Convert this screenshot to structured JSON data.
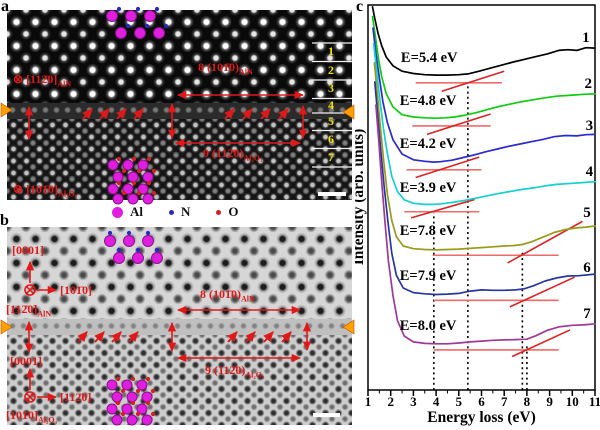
{
  "figure": {
    "panel_a": {
      "letter": "a",
      "zone_top": {
        "symbol": "⊗",
        "text": "[112̄0]",
        "sub": "AlN"
      },
      "zone_bottom": {
        "symbol": "⊗",
        "text": "[101̄0]",
        "sub": "Al₂O₃"
      },
      "span_top": {
        "text": "8 (101̄0)",
        "sub": "AlN"
      },
      "span_bottom": {
        "text": "9 (112̄0)",
        "sub": "Al₂O₃"
      },
      "layer_numbers": [
        "1",
        "2",
        "3",
        "4",
        "5",
        "6",
        "7"
      ]
    },
    "legend": {
      "items": [
        {
          "label": "Al",
          "color": "#e01ee0",
          "radius": 5.5
        },
        {
          "label": "N",
          "color": "#2828c8",
          "radius": 2.5
        },
        {
          "label": "O",
          "color": "#d42020",
          "radius": 2.5
        }
      ]
    },
    "panel_b": {
      "letter": "b",
      "axis_top": {
        "up": "[0001]",
        "right": "[101̄0]",
        "zone": "[112̄0]",
        "zone_sub": "AlN"
      },
      "axis_bottom": {
        "up": "[0001]",
        "right": "[112̄0]",
        "zone": "[101̄0]",
        "zone_sub": "Al₂O₃"
      },
      "span_top": {
        "text": "8 (101̄0)",
        "sub": "AlN"
      },
      "span_bottom": {
        "text": "9 (112̄0)",
        "sub": "Al₂O₃"
      }
    },
    "panel_c": {
      "letter": "c"
    }
  },
  "chart_data": {
    "type": "line",
    "title": "",
    "xlabel": "Energy loss (eV)",
    "ylabel": "Intensity (arb. units)",
    "xlim": [
      1,
      11
    ],
    "ylim": [
      0,
      100
    ],
    "x_major_ticks": [
      1,
      2,
      3,
      4,
      5,
      6,
      7,
      8,
      9,
      10,
      11
    ],
    "x_minor_step": 0.5,
    "grid": false,
    "legend_position": "none",
    "slant_color": "#dd2222",
    "baseline_color": "#f26a6a",
    "dotted_guides": [
      {
        "x": 3.9,
        "y_top": 46
      },
      {
        "x": 5.4,
        "y_top": 80
      },
      {
        "x": 7.8,
        "y_top": 36.5
      },
      {
        "x": 8.0,
        "y_top": 12
      }
    ],
    "series": [
      {
        "name": "1",
        "color": "#000000",
        "onset_eV": 5.4,
        "onset_label": "E=5.4 eV",
        "label_pos": [
          2.45,
          85.2
        ],
        "num_pos": [
          10.6,
          90.4
        ],
        "red_baseline": {
          "y": 79.8,
          "x1": 3.1,
          "x2": 6.9
        },
        "red_slant": [
          [
            4.25,
            77.6
          ],
          [
            7.0,
            82.8
          ]
        ],
        "points": [
          [
            1.2,
            99.5
          ],
          [
            1.3,
            96.5
          ],
          [
            1.45,
            92.5
          ],
          [
            1.6,
            89.5
          ],
          [
            1.8,
            86.5
          ],
          [
            2.1,
            84.2
          ],
          [
            2.5,
            82.8
          ],
          [
            3,
            82.2
          ],
          [
            3.5,
            81.9
          ],
          [
            4,
            81.8
          ],
          [
            4.5,
            81.8
          ],
          [
            5,
            81.9
          ],
          [
            5.4,
            82.1
          ],
          [
            5.9,
            82.8
          ],
          [
            6.4,
            83.6
          ],
          [
            6.9,
            84.4
          ],
          [
            7.4,
            85.2
          ],
          [
            7.9,
            85.9
          ],
          [
            8.4,
            86.6
          ],
          [
            8.9,
            87.3
          ],
          [
            9.4,
            88.2
          ],
          [
            9.8,
            88.4
          ],
          [
            10.2,
            88.2
          ],
          [
            10.6,
            88.9
          ],
          [
            11,
            88.8
          ]
        ]
      },
      {
        "name": "2",
        "color": "#10cc10",
        "onset_eV": 4.8,
        "onset_label": "E=4.8 eV",
        "label_pos": [
          2.4,
          74.0
        ],
        "num_pos": [
          10.7,
          78.4
        ],
        "red_baseline": {
          "y": 68.6,
          "x1": 2.95,
          "x2": 6.4
        },
        "red_slant": [
          [
            3.6,
            66.4
          ],
          [
            6.4,
            71.7
          ]
        ],
        "points": [
          [
            1.2,
            97
          ],
          [
            1.32,
            92
          ],
          [
            1.45,
            86.5
          ],
          [
            1.6,
            81.5
          ],
          [
            1.8,
            77
          ],
          [
            2.1,
            73.5
          ],
          [
            2.5,
            71.5
          ],
          [
            3,
            70.9
          ],
          [
            3.5,
            70.7
          ],
          [
            4,
            70.6
          ],
          [
            4.4,
            70.7
          ],
          [
            4.8,
            70.9
          ],
          [
            5.3,
            71.4
          ],
          [
            5.8,
            72.1
          ],
          [
            6.3,
            72.9
          ],
          [
            6.8,
            73.7
          ],
          [
            7.3,
            74.3
          ],
          [
            7.8,
            74.9
          ],
          [
            8.3,
            75.4
          ],
          [
            8.8,
            75.9
          ],
          [
            9.3,
            76.3
          ],
          [
            10,
            76.6
          ],
          [
            10.5,
            76.8
          ],
          [
            11,
            76.9
          ]
        ]
      },
      {
        "name": "3",
        "color": "#2a2ad0",
        "onset_eV": 4.2,
        "onset_label": "E=4.2 eV",
        "label_pos": [
          2.4,
          62.9
        ],
        "num_pos": [
          10.75,
          67.5
        ],
        "red_baseline": {
          "y": 57.2,
          "x1": 2.7,
          "x2": 6.0
        },
        "red_slant": [
          [
            3.1,
            55.2
          ],
          [
            5.9,
            60.5
          ]
        ],
        "points": [
          [
            1.22,
            94
          ],
          [
            1.35,
            87.5
          ],
          [
            1.5,
            81
          ],
          [
            1.65,
            75
          ],
          [
            1.85,
            69.5
          ],
          [
            2.1,
            65
          ],
          [
            2.5,
            61.3
          ],
          [
            3,
            59.8
          ],
          [
            3.5,
            59.4
          ],
          [
            3.9,
            59.2
          ],
          [
            4.2,
            59.3
          ],
          [
            4.7,
            59.7
          ],
          [
            5.2,
            60.4
          ],
          [
            5.7,
            61.1
          ],
          [
            6.2,
            61.9
          ],
          [
            6.7,
            62.6
          ],
          [
            7.2,
            63.3
          ],
          [
            7.7,
            63.9
          ],
          [
            8.2,
            64.5
          ],
          [
            8.7,
            65.1
          ],
          [
            9.2,
            65.8
          ],
          [
            9.7,
            66.1
          ],
          [
            10.2,
            66
          ],
          [
            10.6,
            66.3
          ],
          [
            11,
            66.4
          ]
        ]
      },
      {
        "name": "4",
        "color": "#16d0d0",
        "onset_eV": 3.9,
        "onset_label": "E=3.9 eV",
        "label_pos": [
          2.4,
          51.4
        ],
        "num_pos": [
          10.75,
          55.6
        ],
        "red_baseline": {
          "y": 46.3,
          "x1": 2.6,
          "x2": 5.9
        },
        "red_slant": [
          [
            2.9,
            44.7
          ],
          [
            5.7,
            49.5
          ]
        ],
        "points": [
          [
            1.25,
            90
          ],
          [
            1.38,
            83
          ],
          [
            1.52,
            75.5
          ],
          [
            1.68,
            68
          ],
          [
            1.85,
            61.5
          ],
          [
            2.05,
            55.5
          ],
          [
            2.3,
            51.5
          ],
          [
            2.6,
            49.4
          ],
          [
            3,
            48.5
          ],
          [
            3.5,
            48.2
          ],
          [
            3.9,
            48.2
          ],
          [
            4.3,
            48.4
          ],
          [
            4.8,
            48.8
          ],
          [
            5.3,
            49.3
          ],
          [
            5.8,
            49.9
          ],
          [
            6.3,
            50.5
          ],
          [
            6.8,
            51.1
          ],
          [
            7.3,
            51.6
          ],
          [
            7.8,
            52.1
          ],
          [
            8.3,
            52.5
          ],
          [
            8.8,
            53
          ],
          [
            9.3,
            53.4
          ],
          [
            10,
            53.7
          ],
          [
            10.5,
            53.9
          ],
          [
            11,
            54.1
          ]
        ]
      },
      {
        "name": "5",
        "color": "#9a9a1a",
        "onset_eV": 7.8,
        "onset_label": "E=7.8 eV",
        "label_pos": [
          2.4,
          40.3
        ],
        "num_pos": [
          10.65,
          44.9
        ],
        "red_baseline": {
          "y": 35.0,
          "x1": 3.85,
          "x2": 9.4
        },
        "red_slant": [
          [
            7.15,
            33.0
          ],
          [
            10.45,
            43.8
          ]
        ],
        "points": [
          [
            1.28,
            85
          ],
          [
            1.4,
            77.5
          ],
          [
            1.55,
            68
          ],
          [
            1.7,
            59
          ],
          [
            1.85,
            51
          ],
          [
            2.05,
            44
          ],
          [
            2.25,
            39.8
          ],
          [
            2.55,
            37.4
          ],
          [
            3,
            36.7
          ],
          [
            3.5,
            36.5
          ],
          [
            4,
            36.4
          ],
          [
            4.5,
            36.5
          ],
          [
            5,
            36.6
          ],
          [
            5.5,
            36.8
          ],
          [
            6,
            37
          ],
          [
            6.5,
            37.2
          ],
          [
            7,
            37.4
          ],
          [
            7.4,
            37.5
          ],
          [
            7.8,
            37.8
          ],
          [
            8.2,
            38.5
          ],
          [
            8.7,
            39.7
          ],
          [
            9.2,
            40.9
          ],
          [
            9.7,
            41.7
          ],
          [
            10.2,
            42.1
          ],
          [
            10.6,
            42.3
          ],
          [
            11,
            42.6
          ]
        ]
      },
      {
        "name": "6",
        "color": "#27379e",
        "onset_eV": 7.9,
        "onset_label": "E=7.9 eV",
        "label_pos": [
          2.4,
          28.6
        ],
        "num_pos": [
          10.65,
          30.6
        ],
        "red_baseline": {
          "y": 23.3,
          "x1": 3.9,
          "x2": 9.4
        },
        "red_slant": [
          [
            7.25,
            21.6
          ],
          [
            10.1,
            29.3
          ]
        ],
        "points": [
          [
            1.3,
            80
          ],
          [
            1.42,
            72
          ],
          [
            1.56,
            62.5
          ],
          [
            1.72,
            52.5
          ],
          [
            1.88,
            43.5
          ],
          [
            2.05,
            35.5
          ],
          [
            2.25,
            29.8
          ],
          [
            2.55,
            26.5
          ],
          [
            3,
            25.3
          ],
          [
            3.5,
            25
          ],
          [
            4,
            24.8
          ],
          [
            4.5,
            24.9
          ],
          [
            5,
            25.1
          ],
          [
            5.5,
            25.7
          ],
          [
            6,
            26
          ],
          [
            6.5,
            25.9
          ],
          [
            7,
            25.9
          ],
          [
            7.5,
            26
          ],
          [
            7.9,
            26.3
          ],
          [
            8.3,
            27.1
          ],
          [
            8.8,
            28.3
          ],
          [
            9.3,
            29.1
          ],
          [
            9.8,
            29.6
          ],
          [
            10.3,
            29.7
          ],
          [
            11,
            30.1
          ]
        ]
      },
      {
        "name": "7",
        "color": "#a03898",
        "onset_eV": 8.0,
        "onset_label": "E=8.0 eV",
        "label_pos": [
          2.4,
          15.6
        ],
        "num_pos": [
          10.65,
          18.7
        ],
        "red_baseline": {
          "y": 10.4,
          "x1": 3.9,
          "x2": 9.4
        },
        "red_slant": [
          [
            7.35,
            8.7
          ],
          [
            9.9,
            15.6
          ]
        ],
        "points": [
          [
            1.35,
            74
          ],
          [
            1.47,
            65
          ],
          [
            1.6,
            54.5
          ],
          [
            1.75,
            43.5
          ],
          [
            1.9,
            33.5
          ],
          [
            2.1,
            24.5
          ],
          [
            2.3,
            18
          ],
          [
            2.6,
            14
          ],
          [
            3,
            12.5
          ],
          [
            3.5,
            12.1
          ],
          [
            4,
            12
          ],
          [
            4.5,
            12
          ],
          [
            5,
            12.2
          ],
          [
            5.5,
            12.5
          ],
          [
            6,
            12.7
          ],
          [
            6.5,
            12.9
          ],
          [
            7,
            13
          ],
          [
            7.5,
            13.1
          ],
          [
            8,
            13.2
          ],
          [
            8.4,
            14.1
          ],
          [
            8.9,
            15.5
          ],
          [
            9.4,
            16.4
          ],
          [
            10,
            16.8
          ],
          [
            10.5,
            16.9
          ],
          [
            11,
            17.2
          ]
        ]
      }
    ]
  }
}
